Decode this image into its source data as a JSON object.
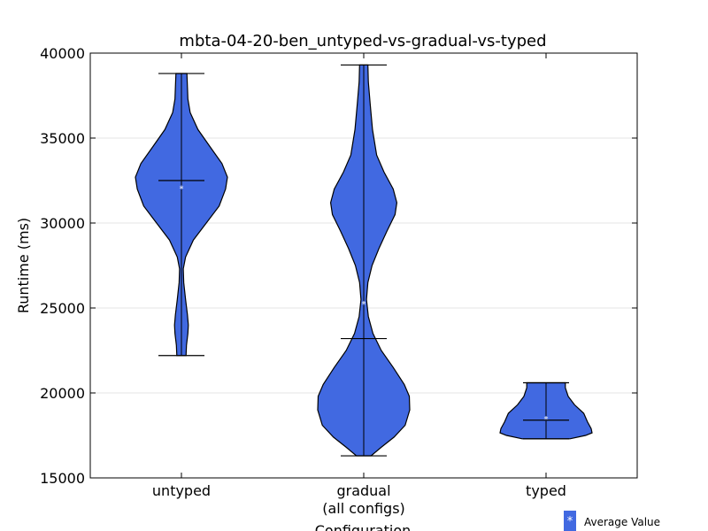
{
  "chart_data": {
    "type": "violin",
    "title": "mbta-04-20-ben_untyped-vs-gradual-vs-typed",
    "xlabel": "Configuration",
    "ylabel": "Runtime (ms)",
    "ylim": [
      15000,
      40000
    ],
    "yticks": [
      15000,
      20000,
      25000,
      30000,
      35000,
      40000
    ],
    "grid": "horizontal",
    "fill_color": "#4169E1",
    "categories": [
      {
        "label_lines": [
          "untyped"
        ],
        "min": 22200,
        "max": 38800,
        "median": 32500,
        "mean": 32100,
        "density": [
          [
            22200,
            0.1
          ],
          [
            22800,
            0.11
          ],
          [
            23500,
            0.14
          ],
          [
            24000,
            0.15
          ],
          [
            24600,
            0.13
          ],
          [
            25500,
            0.09
          ],
          [
            26500,
            0.05
          ],
          [
            27300,
            0.04
          ],
          [
            28000,
            0.09
          ],
          [
            29000,
            0.26
          ],
          [
            30000,
            0.54
          ],
          [
            31000,
            0.82
          ],
          [
            32000,
            0.96
          ],
          [
            32700,
            1.0
          ],
          [
            33500,
            0.88
          ],
          [
            34500,
            0.62
          ],
          [
            35500,
            0.36
          ],
          [
            36500,
            0.19
          ],
          [
            37300,
            0.14
          ],
          [
            38000,
            0.13
          ],
          [
            38800,
            0.12
          ]
        ]
      },
      {
        "label_lines": [
          "gradual",
          "(all configs)"
        ],
        "min": 16300,
        "max": 39300,
        "median": 23200,
        "mean": 25300,
        "density": [
          [
            16300,
            0.16
          ],
          [
            16800,
            0.38
          ],
          [
            17400,
            0.66
          ],
          [
            18100,
            0.9
          ],
          [
            19000,
            1.0
          ],
          [
            19800,
            0.99
          ],
          [
            20500,
            0.88
          ],
          [
            21500,
            0.64
          ],
          [
            22500,
            0.38
          ],
          [
            23500,
            0.2
          ],
          [
            24500,
            0.1
          ],
          [
            25500,
            0.06
          ],
          [
            26500,
            0.09
          ],
          [
            27500,
            0.18
          ],
          [
            28500,
            0.33
          ],
          [
            29500,
            0.5
          ],
          [
            30500,
            0.68
          ],
          [
            31200,
            0.72
          ],
          [
            32000,
            0.64
          ],
          [
            33000,
            0.44
          ],
          [
            34000,
            0.28
          ],
          [
            35500,
            0.19
          ],
          [
            37000,
            0.14
          ],
          [
            38300,
            0.1
          ],
          [
            39300,
            0.09
          ]
        ]
      },
      {
        "label_lines": [
          "typed"
        ],
        "min": 17300,
        "max": 20600,
        "median": 18400,
        "mean": 18550,
        "density": [
          [
            17300,
            0.52
          ],
          [
            17500,
            0.86
          ],
          [
            17650,
            1.0
          ],
          [
            17900,
            0.98
          ],
          [
            18300,
            0.9
          ],
          [
            18800,
            0.82
          ],
          [
            19300,
            0.62
          ],
          [
            19800,
            0.48
          ],
          [
            20300,
            0.42
          ],
          [
            20600,
            0.42
          ]
        ]
      }
    ],
    "legend": {
      "symbol": "*",
      "label": "Average Value",
      "placement": "bottom-right"
    }
  }
}
